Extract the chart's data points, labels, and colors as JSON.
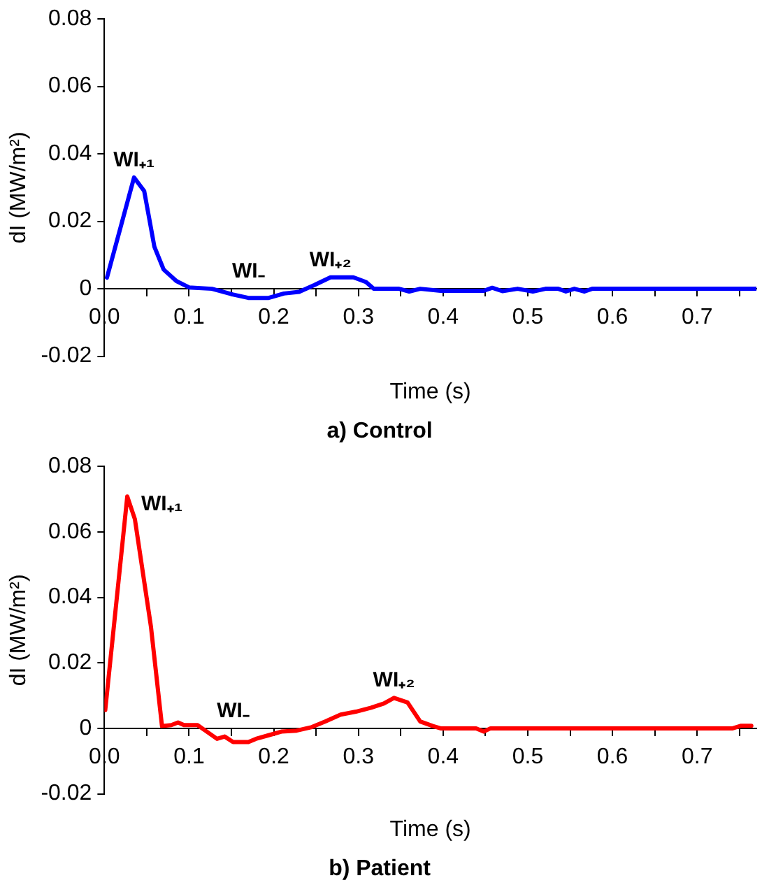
{
  "chart_data": [
    {
      "type": "line",
      "title": "a) Control",
      "xlabel": "Time (s)",
      "ylabel": "dI (MW/m²)",
      "grid": false,
      "legend": false,
      "marker": "none",
      "line_style": "solid",
      "xlim": [
        0,
        0.77
      ],
      "xticks": [
        {
          "value": 0,
          "label": "0.0"
        },
        {
          "value": 0.05,
          "label": null
        },
        0.1,
        {
          "value": 0.15,
          "label": null
        },
        0.2,
        {
          "value": 0.25,
          "label": null
        },
        0.3,
        {
          "value": 0.35,
          "label": null
        },
        0.4,
        {
          "value": 0.45,
          "label": null
        },
        0.5,
        {
          "value": 0.55,
          "label": null
        },
        0.6,
        {
          "value": 0.65,
          "label": null
        },
        0.7,
        {
          "value": 0.75,
          "label": null
        }
      ],
      "ylim": [
        -0.02,
        0.08
      ],
      "yticks": [
        -0.02,
        0,
        0.02,
        0.04,
        0.06,
        0.08
      ],
      "series": [
        {
          "color": "#0000ff",
          "x": [
            0.003,
            0.035,
            0.047,
            0.059,
            0.07,
            0.085,
            0.1,
            0.127,
            0.152,
            0.17,
            0.194,
            0.212,
            0.23,
            0.248,
            0.267,
            0.294,
            0.309,
            0.318,
            0.348,
            0.36,
            0.373,
            0.397,
            0.448,
            0.458,
            0.47,
            0.488,
            0.506,
            0.521,
            0.536,
            0.545,
            0.555,
            0.567,
            0.576,
            0.77
          ],
          "values": [
            0.0033,
            0.033,
            0.029,
            0.0125,
            0.0057,
            0.0023,
            0.0004,
            0,
            -0.0017,
            -0.0027,
            -0.0027,
            -0.0014,
            -0.0009,
            0.0011,
            0.0034,
            0.0034,
            0.002,
            0,
            0,
            -0.0008,
            0,
            -0.0006,
            -0.0006,
            0.0003,
            -0.0007,
            0,
            -0.0008,
            0,
            0,
            -0.0008,
            0,
            -0.0008,
            0,
            0
          ]
        }
      ],
      "annotations": [
        {
          "text": "WI₊₁",
          "x": 0.035,
          "y": 0.033
        },
        {
          "text": "WI₋",
          "x": 0.17,
          "y": -0.0027
        },
        {
          "text": "WI₊₂",
          "x": 0.267,
          "y": 0.0034
        }
      ]
    },
    {
      "type": "line",
      "title": "b) Patient",
      "xlabel": "Time (s)",
      "ylabel": "dI (MW/m²)",
      "grid": false,
      "legend": false,
      "marker": "none",
      "line_style": "solid",
      "xlim": [
        0,
        0.77
      ],
      "xticks": [
        {
          "value": 0,
          "label": "0.0"
        },
        {
          "value": 0.05,
          "label": null
        },
        0.1,
        {
          "value": 0.15,
          "label": null
        },
        0.2,
        {
          "value": 0.25,
          "label": null
        },
        0.3,
        {
          "value": 0.35,
          "label": null
        },
        0.4,
        {
          "value": 0.45,
          "label": null
        },
        0.5,
        {
          "value": 0.55,
          "label": null
        },
        0.6,
        {
          "value": 0.65,
          "label": null
        },
        0.7,
        {
          "value": 0.75,
          "label": null
        }
      ],
      "ylim": [
        -0.02,
        0.08
      ],
      "yticks": [
        -0.02,
        0,
        0.02,
        0.04,
        0.06,
        0.08
      ],
      "series": [
        {
          "color": "#ff0000",
          "x": [
            0.001,
            0.027,
            0.036,
            0.055,
            0.068,
            0.079,
            0.087,
            0.094,
            0.11,
            0.121,
            0.133,
            0.142,
            0.152,
            0.17,
            0.179,
            0.194,
            0.209,
            0.227,
            0.245,
            0.261,
            0.279,
            0.297,
            0.315,
            0.33,
            0.342,
            0.358,
            0.373,
            0.388,
            0.397,
            0.439,
            0.448,
            0.456,
            0.742,
            0.752,
            0.764
          ],
          "values": [
            0.0056,
            0.0708,
            0.0639,
            0.031,
            0.0007,
            0.001,
            0.0018,
            0.001,
            0.001,
            -0.001,
            -0.0032,
            -0.0025,
            -0.0042,
            -0.0042,
            -0.0032,
            -0.0021,
            -0.001,
            -0.0007,
            0.0004,
            0.0021,
            0.0042,
            0.0051,
            0.0063,
            0.0076,
            0.0093,
            0.0079,
            0.0021,
            0.0007,
            0,
            0,
            -0.001,
            0,
            0,
            0.0008,
            0.0008
          ]
        }
      ],
      "annotations": [
        {
          "text": "WI₊₁",
          "x": 0.027,
          "y": 0.0708
        },
        {
          "text": "WI₋",
          "x": 0.152,
          "y": -0.0042
        },
        {
          "text": "WI₊₂",
          "x": 0.342,
          "y": 0.0093
        }
      ]
    }
  ]
}
